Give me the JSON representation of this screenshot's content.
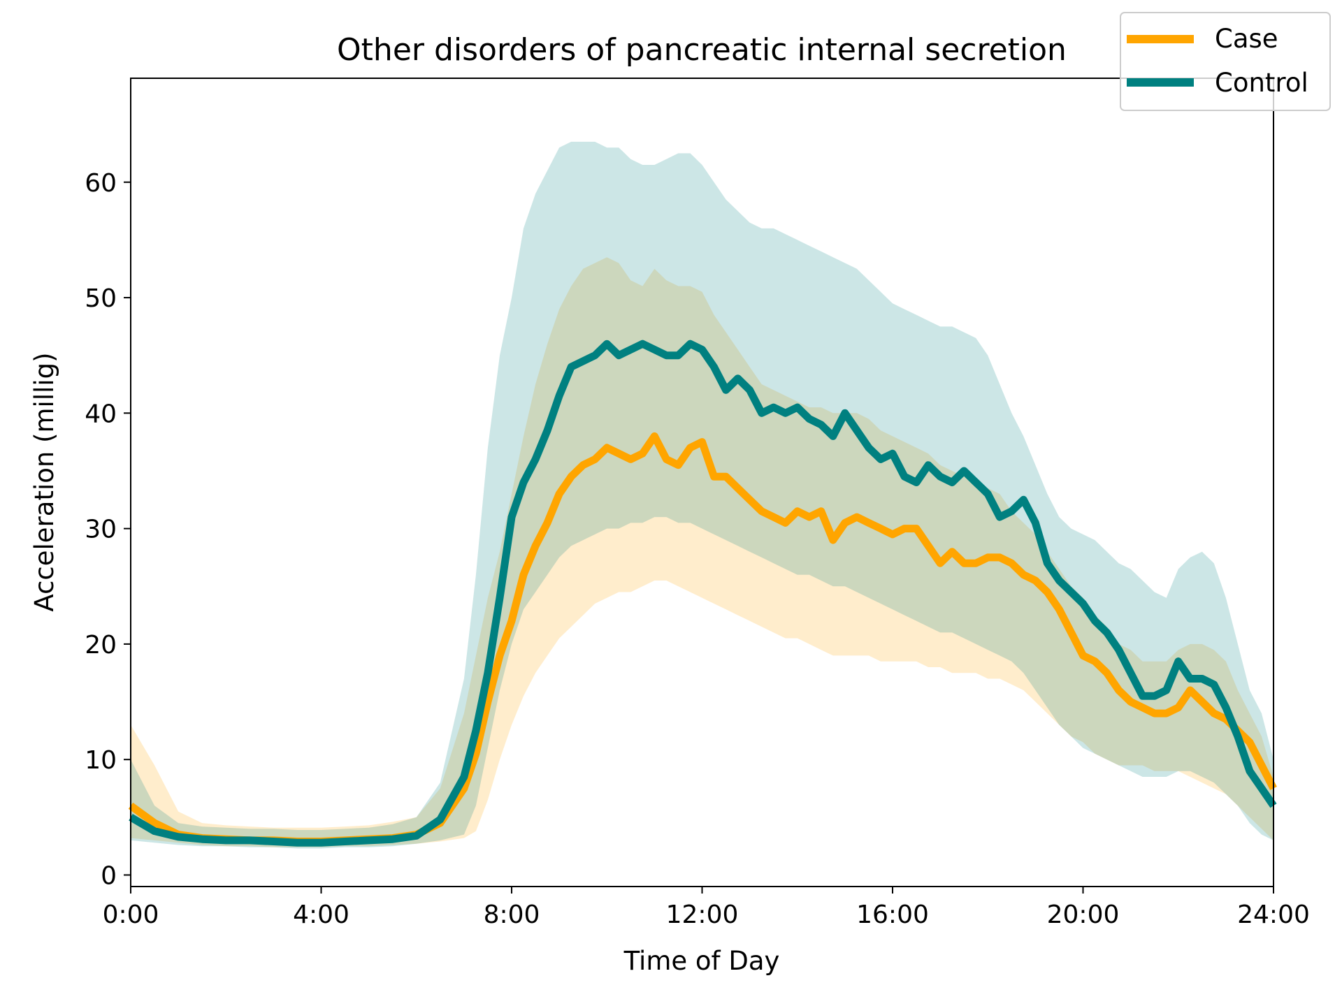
{
  "chart_data": {
    "type": "line",
    "title": "Other disorders of pancreatic internal secretion",
    "xlabel": "Time of Day",
    "ylabel": "Acceleration (millig)",
    "xlim": [
      0,
      24
    ],
    "ylim": [
      -1,
      69
    ],
    "x_ticks": [
      0,
      4,
      8,
      12,
      16,
      20,
      24
    ],
    "x_tick_labels": [
      "0:00",
      "4:00",
      "8:00",
      "12:00",
      "16:00",
      "20:00",
      "24:00"
    ],
    "y_ticks": [
      0,
      10,
      20,
      30,
      40,
      50,
      60
    ],
    "y_tick_labels": [
      "0",
      "10",
      "20",
      "30",
      "40",
      "50",
      "60"
    ],
    "grid": false,
    "legend_position": "top-right",
    "series": [
      {
        "name": "Case",
        "color": "#FFA500",
        "band_color": "#FFE8C0",
        "x": [
          0,
          0.5,
          1,
          1.5,
          2,
          2.5,
          3,
          3.5,
          4,
          4.5,
          5,
          5.5,
          6,
          6.5,
          7,
          7.25,
          7.5,
          7.75,
          8,
          8.25,
          8.5,
          8.75,
          9,
          9.25,
          9.5,
          9.75,
          10,
          10.25,
          10.5,
          10.75,
          11,
          11.25,
          11.5,
          11.75,
          12,
          12.25,
          12.5,
          12.75,
          13,
          13.25,
          13.5,
          13.75,
          14,
          14.25,
          14.5,
          14.75,
          15,
          15.25,
          15.5,
          15.75,
          16,
          16.25,
          16.5,
          16.75,
          17,
          17.25,
          17.5,
          17.75,
          18,
          18.25,
          18.5,
          18.75,
          19,
          19.25,
          19.5,
          19.75,
          20,
          20.25,
          20.5,
          20.75,
          21,
          21.25,
          21.5,
          21.75,
          22,
          22.25,
          22.5,
          22.75,
          23,
          23.25,
          23.5,
          23.75,
          24
        ],
        "y": [
          6,
          4.5,
          3.5,
          3.2,
          3.1,
          3.0,
          3.0,
          2.9,
          2.9,
          3.0,
          3.1,
          3.2,
          3.5,
          4.5,
          7.5,
          10.5,
          15,
          19,
          22,
          26,
          28.5,
          30.5,
          33,
          34.5,
          35.5,
          36,
          37,
          36.5,
          36,
          36.5,
          38,
          36,
          35.5,
          37,
          37.5,
          34.5,
          34.5,
          33.5,
          32.5,
          31.5,
          31,
          30.5,
          31.5,
          31,
          31.5,
          29,
          30.5,
          31,
          30.5,
          30,
          29.5,
          30,
          30,
          28.5,
          27,
          28,
          27,
          27,
          27.5,
          27.5,
          27,
          26,
          25.5,
          24.5,
          23,
          21,
          19,
          18.5,
          17.5,
          16,
          15,
          14.5,
          14,
          14,
          14.5,
          16,
          15,
          14,
          13.5,
          12.5,
          11.5,
          9.5,
          7.5
        ],
        "upper": [
          13,
          9.5,
          5.5,
          4.5,
          4.3,
          4.2,
          4.1,
          4.1,
          4.1,
          4.2,
          4.3,
          4.6,
          5,
          7.5,
          14,
          19,
          24,
          28,
          33,
          38,
          42.5,
          46,
          49,
          51,
          52.5,
          53,
          53.5,
          53,
          51.5,
          51,
          52.5,
          51.5,
          51,
          51,
          50.5,
          48.5,
          47,
          45.5,
          44,
          42.5,
          42,
          41.5,
          41,
          40.5,
          40.5,
          40,
          40,
          40,
          39.5,
          38.5,
          38,
          37.5,
          37,
          36.5,
          35.5,
          35,
          34.5,
          34,
          33.5,
          33,
          31.5,
          30.5,
          29.5,
          28,
          26.5,
          25,
          24,
          22.5,
          21.5,
          20,
          19.5,
          18.5,
          18.5,
          18.5,
          19.5,
          20,
          20,
          19.5,
          18.5,
          16,
          14,
          12,
          8.5
        ],
        "lower": [
          3.2,
          3.0,
          2.8,
          2.6,
          2.5,
          2.5,
          2.4,
          2.4,
          2.4,
          2.5,
          2.5,
          2.6,
          2.7,
          2.9,
          3.2,
          3.8,
          6.5,
          10,
          13,
          15.5,
          17.5,
          19,
          20.5,
          21.5,
          22.5,
          23.5,
          24,
          24.5,
          24.5,
          25,
          25.5,
          25.5,
          25,
          24.5,
          24,
          23.5,
          23,
          22.5,
          22,
          21.5,
          21,
          20.5,
          20.5,
          20,
          19.5,
          19,
          19,
          19,
          19,
          18.5,
          18.5,
          18.5,
          18.5,
          18,
          18,
          17.5,
          17.5,
          17.5,
          17,
          17,
          16.5,
          16,
          15,
          14,
          13,
          12,
          11.5,
          10.5,
          10,
          9.5,
          9.5,
          9.5,
          9,
          9,
          9,
          8.5,
          8,
          7.5,
          7,
          6,
          5,
          4,
          3
        ]
      },
      {
        "name": "Control",
        "color": "#008080",
        "band_color": "#CCE6E6",
        "x": [
          0,
          0.5,
          1,
          1.5,
          2,
          2.5,
          3,
          3.5,
          4,
          4.5,
          5,
          5.5,
          6,
          6.5,
          7,
          7.25,
          7.5,
          7.75,
          8,
          8.25,
          8.5,
          8.75,
          9,
          9.25,
          9.5,
          9.75,
          10,
          10.25,
          10.5,
          10.75,
          11,
          11.25,
          11.5,
          11.75,
          12,
          12.25,
          12.5,
          12.75,
          13,
          13.25,
          13.5,
          13.75,
          14,
          14.25,
          14.5,
          14.75,
          15,
          15.25,
          15.5,
          15.75,
          16,
          16.25,
          16.5,
          16.75,
          17,
          17.25,
          17.5,
          17.75,
          18,
          18.25,
          18.5,
          18.75,
          19,
          19.25,
          19.5,
          19.75,
          20,
          20.25,
          20.5,
          20.75,
          21,
          21.25,
          21.5,
          21.75,
          22,
          22.25,
          22.5,
          22.75,
          23,
          23.25,
          23.5,
          23.75,
          24
        ],
        "y": [
          5,
          3.8,
          3.3,
          3.1,
          3.0,
          3.0,
          2.9,
          2.8,
          2.8,
          2.9,
          3.0,
          3.1,
          3.4,
          4.8,
          8.5,
          12.5,
          17.5,
          24,
          31,
          34,
          36,
          38.5,
          41.5,
          44,
          44.5,
          45,
          46,
          45,
          45.5,
          46,
          45.5,
          45,
          45,
          46,
          45.5,
          44,
          42,
          43,
          42,
          40,
          40.5,
          40,
          40.5,
          39.5,
          39,
          38,
          40,
          38.5,
          37,
          36,
          36.5,
          34.5,
          34,
          35.5,
          34.5,
          34,
          35,
          34,
          33,
          31,
          31.5,
          32.5,
          30.5,
          27,
          25.5,
          24.5,
          23.5,
          22,
          21,
          19.5,
          17.5,
          15.5,
          15.5,
          16,
          18.5,
          17,
          17,
          16.5,
          14.5,
          12,
          9,
          7.5,
          6
        ],
        "upper": [
          10,
          6,
          4.5,
          4.2,
          4.1,
          4.0,
          4.0,
          3.9,
          3.9,
          4.0,
          4.1,
          4.4,
          5,
          8,
          17,
          26,
          37,
          45,
          50,
          56,
          59,
          61,
          63,
          63.5,
          63.5,
          63.5,
          63,
          63,
          62,
          61.5,
          61.5,
          62,
          62.5,
          62.5,
          61.5,
          60,
          58.5,
          57.5,
          56.5,
          56,
          56,
          55.5,
          55,
          54.5,
          54,
          53.5,
          53,
          52.5,
          51.5,
          50.5,
          49.5,
          49,
          48.5,
          48,
          47.5,
          47.5,
          47,
          46.5,
          45,
          42.5,
          40,
          38,
          35.5,
          33,
          31,
          30,
          29.5,
          29,
          28,
          27,
          26.5,
          25.5,
          24.5,
          24,
          26.5,
          27.5,
          28,
          27,
          24,
          20,
          16,
          14,
          10
        ],
        "lower": [
          3.0,
          2.8,
          2.6,
          2.5,
          2.5,
          2.4,
          2.4,
          2.3,
          2.3,
          2.4,
          2.4,
          2.5,
          2.7,
          3.0,
          3.5,
          6,
          11,
          16,
          20,
          23,
          24.5,
          26,
          27.5,
          28.5,
          29,
          29.5,
          30,
          30,
          30.5,
          30.5,
          31,
          31,
          30.5,
          30.5,
          30,
          29.5,
          29,
          28.5,
          28,
          27.5,
          27,
          26.5,
          26,
          26,
          25.5,
          25,
          25,
          24.5,
          24,
          23.5,
          23,
          22.5,
          22,
          21.5,
          21,
          21,
          20.5,
          20,
          19.5,
          19,
          18.5,
          17.5,
          16,
          14.5,
          13,
          12,
          11,
          10.5,
          10,
          9.5,
          9,
          8.5,
          8.5,
          8.5,
          9,
          9,
          8.5,
          8,
          7,
          6,
          4.5,
          3.5,
          3
        ]
      }
    ]
  }
}
